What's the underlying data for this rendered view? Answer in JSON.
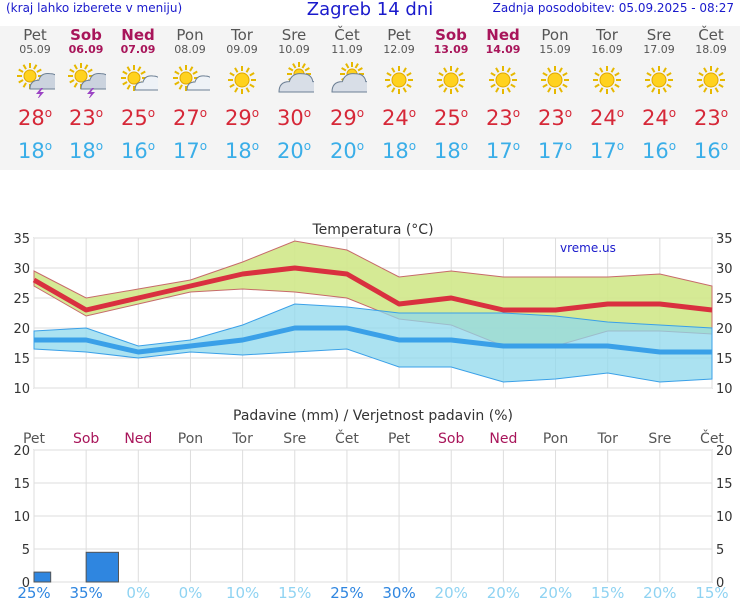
{
  "header": {
    "hint": "(kraj lahko izberete v meniju)",
    "title": "Zagreb 14 dni",
    "updated": "Zadnja posodobitev: 05.09.2025 - 08:27"
  },
  "days": [
    {
      "name": "Pet",
      "date": "05.09",
      "weekend": false,
      "icon": "storm-sun",
      "tmax": "28",
      "tmin": "18"
    },
    {
      "name": "Sob",
      "date": "06.09",
      "weekend": true,
      "icon": "storm-sun",
      "tmax": "23",
      "tmin": "18"
    },
    {
      "name": "Ned",
      "date": "07.09",
      "weekend": true,
      "icon": "sun-cloud",
      "tmax": "25",
      "tmin": "16"
    },
    {
      "name": "Pon",
      "date": "08.09",
      "weekend": false,
      "icon": "sun-cloud",
      "tmax": "27",
      "tmin": "17"
    },
    {
      "name": "Tor",
      "date": "09.09",
      "weekend": false,
      "icon": "sun",
      "tmax": "29",
      "tmin": "18"
    },
    {
      "name": "Sre",
      "date": "10.09",
      "weekend": false,
      "icon": "cloud-sun",
      "tmax": "30",
      "tmin": "20"
    },
    {
      "name": "Čet",
      "date": "11.09",
      "weekend": false,
      "icon": "cloud-sun",
      "tmax": "29",
      "tmin": "20"
    },
    {
      "name": "Pet",
      "date": "12.09",
      "weekend": false,
      "icon": "sun",
      "tmax": "24",
      "tmin": "18"
    },
    {
      "name": "Sob",
      "date": "13.09",
      "weekend": true,
      "icon": "sun",
      "tmax": "25",
      "tmin": "18"
    },
    {
      "name": "Ned",
      "date": "14.09",
      "weekend": true,
      "icon": "sun",
      "tmax": "23",
      "tmin": "17"
    },
    {
      "name": "Pon",
      "date": "15.09",
      "weekend": false,
      "icon": "sun",
      "tmax": "23",
      "tmin": "17"
    },
    {
      "name": "Tor",
      "date": "16.09",
      "weekend": false,
      "icon": "sun",
      "tmax": "24",
      "tmin": "17"
    },
    {
      "name": "Sre",
      "date": "17.09",
      "weekend": false,
      "icon": "sun",
      "tmax": "24",
      "tmin": "16"
    },
    {
      "name": "Čet",
      "date": "18.09",
      "weekend": false,
      "icon": "sun",
      "tmax": "23",
      "tmin": "16"
    }
  ],
  "degree_symbol": "o",
  "colors": {
    "max_line": "#d9303f",
    "min_line": "#3aa0e8",
    "max_band": "#d0e88a",
    "min_band": "#8fd8ec",
    "overlap_band": "#86c88a",
    "weekend": "#a8155a",
    "weekday": "#555555",
    "precip_bar": "#2f86e0",
    "grid": "#cccccc"
  },
  "chart_data": [
    {
      "type": "line",
      "title": "Temperatura",
      "unit": "(°C)",
      "watermark": "vreme.us",
      "categories": [
        "05.09",
        "06.09",
        "07.09",
        "08.09",
        "09.09",
        "10.09",
        "11.09",
        "12.09",
        "13.09",
        "14.09",
        "15.09",
        "16.09",
        "17.09",
        "18.09"
      ],
      "ylim": [
        10,
        35
      ],
      "yticks": [
        10,
        15,
        20,
        25,
        30,
        35
      ],
      "grid": true,
      "series": [
        {
          "name": "max",
          "values": [
            28,
            23,
            25,
            27,
            29,
            30,
            29,
            24,
            25,
            23,
            23,
            24,
            24,
            23
          ],
          "band_upper": [
            29.5,
            25,
            26.5,
            28,
            31,
            34.5,
            33,
            28.5,
            29.5,
            28.5,
            28.5,
            28.5,
            29,
            27
          ],
          "band_lower": [
            27,
            22,
            24,
            26,
            26.5,
            26,
            25,
            21.5,
            20.5,
            17,
            17,
            19.5,
            19.5,
            19
          ]
        },
        {
          "name": "min",
          "values": [
            18,
            18,
            16,
            17,
            18,
            20,
            20,
            18,
            18,
            17,
            17,
            17,
            16,
            16
          ],
          "band_upper": [
            19.5,
            20,
            17,
            18,
            20.5,
            24,
            23.5,
            22.5,
            22.5,
            22.5,
            22,
            21,
            20.5,
            20
          ],
          "band_lower": [
            16.5,
            16,
            15,
            16,
            15.5,
            16,
            16.5,
            13.5,
            13.5,
            11,
            11.5,
            12.5,
            11,
            11.5
          ]
        }
      ]
    },
    {
      "type": "bar",
      "title": "Padavine (mm) / Verjetnost padavin (%)",
      "categories": [
        "Pet",
        "Sob",
        "Ned",
        "Pon",
        "Tor",
        "Sre",
        "Čet",
        "Pet",
        "Sob",
        "Ned",
        "Pon",
        "Tor",
        "Sre",
        "Čet"
      ],
      "weekend": [
        false,
        true,
        true,
        false,
        false,
        false,
        false,
        false,
        true,
        true,
        false,
        false,
        false,
        false
      ],
      "ylim": [
        0,
        20
      ],
      "yticks": [
        0,
        5,
        10,
        15,
        20
      ],
      "values": [
        1.5,
        4.5,
        0,
        0,
        0,
        0,
        0,
        0,
        0,
        0,
        0,
        0,
        0,
        0
      ],
      "probability": [
        "25%",
        "35%",
        "0%",
        "0%",
        "10%",
        "15%",
        "25%",
        "30%",
        "20%",
        "20%",
        "20%",
        "15%",
        "20%",
        "15%"
      ],
      "probability_values": [
        25,
        35,
        0,
        0,
        10,
        15,
        25,
        30,
        20,
        20,
        20,
        15,
        20,
        15
      ]
    }
  ]
}
